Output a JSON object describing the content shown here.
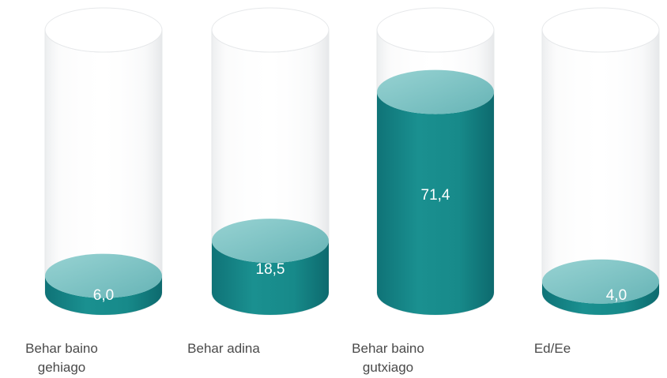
{
  "chart_data": {
    "type": "bar",
    "style": "3d-cylinder",
    "categories": [
      "Behar baino gehiago",
      "Behar adina",
      "Behar baino gutxiago",
      "Ed/Ee"
    ],
    "values": [
      6.0,
      18.5,
      71.4,
      4.0
    ],
    "value_labels": [
      "6,0",
      "18,5",
      "71,4",
      "4,0"
    ],
    "ylim": [
      0,
      100
    ],
    "grid": false,
    "legend": "none",
    "colors": {
      "fill": "#1a8c8c",
      "fill_dark": "#0f6f72",
      "top": "#6fbcbc",
      "glass_edge": "#e2e4e6",
      "label_text": "#ffffff",
      "category_text": "#4a4a4a"
    }
  },
  "labels": {
    "cat0": "Behar baino\ngehiago",
    "cat1": "Behar adina",
    "cat2": "Behar baino\ngutxiago",
    "cat3": "Ed/Ee"
  }
}
